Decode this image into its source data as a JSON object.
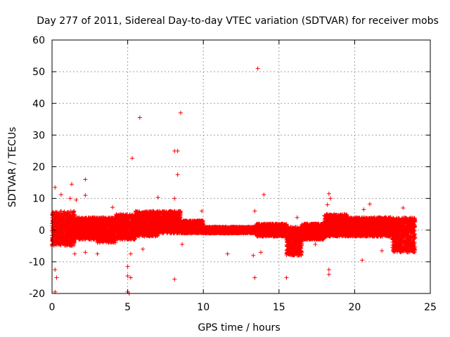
{
  "chart_data": {
    "type": "scatter",
    "title": "Day 277 of 2011, Sidereal Day-to-day VTEC variation (SDTVAR) for receiver mobs",
    "xlabel": "GPS time / hours",
    "ylabel": "SDTVAR / TECUs",
    "xlim": [
      0,
      25
    ],
    "ylim": [
      -20,
      60
    ],
    "x_ticks": [
      0,
      5,
      10,
      15,
      20,
      25
    ],
    "y_ticks": [
      -20,
      -10,
      0,
      10,
      20,
      30,
      40,
      50,
      60
    ],
    "x_tick_labels": [
      "0",
      "5",
      "10",
      "15",
      "20",
      "25"
    ],
    "y_tick_labels": [
      "-20",
      "-10",
      "0",
      "10",
      "20",
      "30",
      "40",
      "50",
      "60"
    ],
    "grid": true,
    "marker": "plus",
    "color": "#ff0000",
    "bands": [
      {
        "x0": 0.0,
        "x1": 1.5,
        "ymin": -5,
        "ymax": 6
      },
      {
        "x0": 1.5,
        "x1": 3.0,
        "ymin": -3,
        "ymax": 4
      },
      {
        "x0": 3.0,
        "x1": 4.2,
        "ymin": -4,
        "ymax": 4
      },
      {
        "x0": 4.2,
        "x1": 5.5,
        "ymin": -3,
        "ymax": 5
      },
      {
        "x0": 5.5,
        "x1": 7.0,
        "ymin": -2,
        "ymax": 6
      },
      {
        "x0": 7.0,
        "x1": 8.5,
        "ymin": -1,
        "ymax": 6
      },
      {
        "x0": 8.5,
        "x1": 10.0,
        "ymin": -1,
        "ymax": 3
      },
      {
        "x0": 10.0,
        "x1": 11.5,
        "ymin": -1,
        "ymax": 1
      },
      {
        "x0": 11.5,
        "x1": 13.5,
        "ymin": -1,
        "ymax": 1
      },
      {
        "x0": 13.5,
        "x1": 15.5,
        "ymin": -2,
        "ymax": 2
      },
      {
        "x0": 15.5,
        "x1": 16.5,
        "ymin": -8,
        "ymax": 1
      },
      {
        "x0": 16.5,
        "x1": 18.0,
        "ymin": -3,
        "ymax": 2
      },
      {
        "x0": 18.0,
        "x1": 19.5,
        "ymin": -2,
        "ymax": 5
      },
      {
        "x0": 19.5,
        "x1": 21.0,
        "ymin": -2,
        "ymax": 4
      },
      {
        "x0": 21.0,
        "x1": 22.5,
        "ymin": -2,
        "ymax": 4
      },
      {
        "x0": 22.5,
        "x1": 24.0,
        "ymin": -7,
        "ymax": 4
      }
    ],
    "outliers": [
      {
        "x": 13.6,
        "y": 51.0
      },
      {
        "x": 8.5,
        "y": 37.0
      },
      {
        "x": 5.8,
        "y": 35.5
      },
      {
        "x": 5.3,
        "y": 22.7
      },
      {
        "x": 8.1,
        "y": 25.0
      },
      {
        "x": 8.3,
        "y": 25.0
      },
      {
        "x": 8.3,
        "y": 17.5
      },
      {
        "x": 2.2,
        "y": 16.0
      },
      {
        "x": 1.3,
        "y": 14.5
      },
      {
        "x": 0.2,
        "y": 13.5
      },
      {
        "x": 0.6,
        "y": 11.2
      },
      {
        "x": 2.2,
        "y": 11.0
      },
      {
        "x": 1.2,
        "y": 10.0
      },
      {
        "x": 1.6,
        "y": 9.5
      },
      {
        "x": 8.1,
        "y": 10.0
      },
      {
        "x": 7.0,
        "y": 10.3
      },
      {
        "x": 14.0,
        "y": 11.2
      },
      {
        "x": 18.3,
        "y": 11.5
      },
      {
        "x": 18.4,
        "y": 10.0
      },
      {
        "x": 18.2,
        "y": 8.0
      },
      {
        "x": 21.0,
        "y": 8.2
      },
      {
        "x": 20.6,
        "y": 6.5
      },
      {
        "x": 23.2,
        "y": 7.0
      },
      {
        "x": 13.4,
        "y": 6.0
      },
      {
        "x": 18.2,
        "y": 5.0
      },
      {
        "x": 9.9,
        "y": 6.0
      },
      {
        "x": 4.0,
        "y": 7.2
      },
      {
        "x": 1.5,
        "y": -7.5
      },
      {
        "x": 2.2,
        "y": -7.0
      },
      {
        "x": 3.0,
        "y": -7.5
      },
      {
        "x": 0.2,
        "y": -12.5
      },
      {
        "x": 0.3,
        "y": -15.0
      },
      {
        "x": 0.2,
        "y": -19.5
      },
      {
        "x": 5.0,
        "y": -11.5
      },
      {
        "x": 5.0,
        "y": -14.5
      },
      {
        "x": 5.2,
        "y": -15.0
      },
      {
        "x": 5.0,
        "y": -19.5
      },
      {
        "x": 5.1,
        "y": -20.0
      },
      {
        "x": 5.2,
        "y": -7.5
      },
      {
        "x": 6.0,
        "y": -6.0
      },
      {
        "x": 8.1,
        "y": -15.5
      },
      {
        "x": 8.6,
        "y": -4.5
      },
      {
        "x": 11.6,
        "y": -7.5
      },
      {
        "x": 13.3,
        "y": -8.0
      },
      {
        "x": 13.4,
        "y": -15.0
      },
      {
        "x": 13.8,
        "y": -7.0
      },
      {
        "x": 15.5,
        "y": -15.0
      },
      {
        "x": 18.3,
        "y": -12.5
      },
      {
        "x": 18.3,
        "y": -14.0
      },
      {
        "x": 20.5,
        "y": -9.5
      },
      {
        "x": 21.8,
        "y": -6.5
      },
      {
        "x": 16.2,
        "y": 4.0
      },
      {
        "x": 17.4,
        "y": -4.5
      }
    ]
  }
}
